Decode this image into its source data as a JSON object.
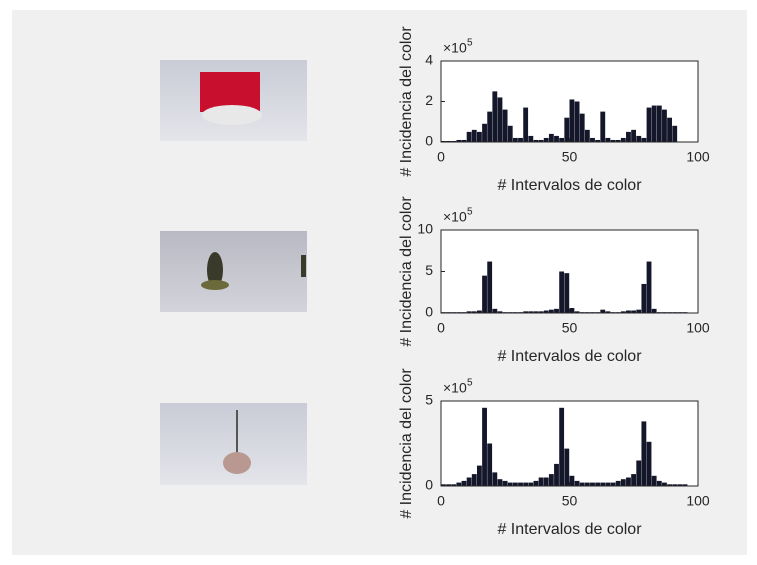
{
  "chart_data": [
    {
      "type": "histogram",
      "y_label": "# Incidencia del color",
      "x_label": "# Intervalos de color",
      "y_scale_base": "×10",
      "y_scale_exponent": "5",
      "color": "#14162a",
      "bins": [
        0,
        2,
        4,
        6,
        8,
        10,
        12,
        14,
        16,
        18,
        20,
        22,
        24,
        26,
        28,
        30,
        32,
        34,
        36,
        38,
        40,
        42,
        44,
        46,
        48,
        50,
        52,
        54,
        56,
        58,
        60,
        62,
        64,
        66,
        68,
        70,
        72,
        74,
        76,
        78,
        80,
        82,
        84,
        86,
        88,
        90,
        92,
        94,
        96
      ],
      "values": [
        0.05,
        0.05,
        0.05,
        0.1,
        0.1,
        0.5,
        0.6,
        0.5,
        0.9,
        1.5,
        2.5,
        2.2,
        1.6,
        0.8,
        0.2,
        0.2,
        1.7,
        0.3,
        0.1,
        0.1,
        0.2,
        0.4,
        0.3,
        0.2,
        1.2,
        2.1,
        2.0,
        1.4,
        0.6,
        0.2,
        0.1,
        1.5,
        0.2,
        0.1,
        0.1,
        0.2,
        0.5,
        0.6,
        0.3,
        0.2,
        1.7,
        1.8,
        1.8,
        1.6,
        1.2,
        0.8,
        0,
        0
      ],
      "xlim": [
        0,
        100
      ],
      "xticks": [
        0,
        50,
        100
      ],
      "ylim": [
        0,
        4
      ],
      "yticks": [
        0,
        2,
        4
      ]
    },
    {
      "type": "histogram",
      "y_label": "# Incidencia del color",
      "x_label": "# Intervalos de color",
      "y_scale_base": "×10",
      "y_scale_exponent": "5",
      "color": "#14162a",
      "bins": [
        0,
        2,
        4,
        6,
        8,
        10,
        12,
        14,
        16,
        18,
        20,
        22,
        24,
        26,
        28,
        30,
        32,
        34,
        36,
        38,
        40,
        42,
        44,
        46,
        48,
        50,
        52,
        54,
        56,
        58,
        60,
        62,
        64,
        66,
        68,
        70,
        72,
        74,
        76,
        78,
        80,
        82,
        84,
        86,
        88,
        90,
        92,
        94,
        96
      ],
      "values": [
        0.1,
        0.1,
        0.1,
        0.1,
        0.1,
        0.2,
        0.2,
        0.3,
        4.5,
        6.2,
        0.5,
        0.2,
        0.1,
        0.1,
        0.1,
        0.1,
        0.2,
        0.2,
        0.2,
        0.2,
        0.3,
        0.4,
        0.5,
        5.0,
        4.8,
        0.6,
        0.2,
        0.1,
        0.1,
        0.1,
        0.1,
        0.4,
        0.2,
        0.1,
        0.1,
        0.2,
        0.3,
        0.3,
        0.4,
        3.5,
        6.2,
        0.5,
        0.1,
        0.1,
        0.1,
        0.1,
        0.1,
        0.1
      ],
      "xlim": [
        0,
        100
      ],
      "xticks": [
        0,
        50,
        100
      ],
      "ylim": [
        0,
        10
      ],
      "yticks": [
        0,
        5,
        10
      ]
    },
    {
      "type": "histogram",
      "y_label": "# Incidencia del color",
      "x_label": "# Intervalos de color",
      "y_scale_base": "×10",
      "y_scale_exponent": "5",
      "color": "#14162a",
      "bins": [
        0,
        2,
        4,
        6,
        8,
        10,
        12,
        14,
        16,
        18,
        20,
        22,
        24,
        26,
        28,
        30,
        32,
        34,
        36,
        38,
        40,
        42,
        44,
        46,
        48,
        50,
        52,
        54,
        56,
        58,
        60,
        62,
        64,
        66,
        68,
        70,
        72,
        74,
        76,
        78,
        80,
        82,
        84,
        86,
        88,
        90,
        92,
        94,
        96
      ],
      "values": [
        0.1,
        0.1,
        0.1,
        0.2,
        0.3,
        0.5,
        0.7,
        1.2,
        4.6,
        2.5,
        0.8,
        0.4,
        0.3,
        0.2,
        0.2,
        0.2,
        0.2,
        0.2,
        0.3,
        0.5,
        0.5,
        0.7,
        1.3,
        4.6,
        2.2,
        0.6,
        0.3,
        0.2,
        0.2,
        0.2,
        0.2,
        0.2,
        0.2,
        0.2,
        0.3,
        0.4,
        0.5,
        0.7,
        1.5,
        3.8,
        2.6,
        0.6,
        0.3,
        0.2,
        0.1,
        0.1,
        0.1,
        0.1
      ],
      "xlim": [
        0,
        100
      ],
      "xticks": [
        0,
        50,
        100
      ],
      "ylim": [
        0,
        5
      ],
      "yticks": [
        0,
        5
      ]
    }
  ]
}
